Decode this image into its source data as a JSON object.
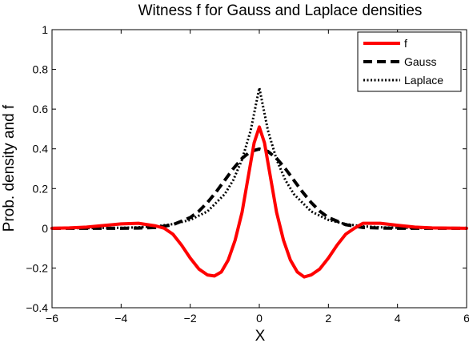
{
  "chart_data": {
    "type": "line",
    "title": "Witness f for Gauss and Laplace densities",
    "xlabel": "X",
    "ylabel": "Prob. density and f",
    "xlim": [
      -6,
      6
    ],
    "ylim": [
      -0.4,
      1
    ],
    "xticks": [
      -6,
      -4,
      -2,
      0,
      2,
      4,
      6
    ],
    "yticks": [
      -0.4,
      -0.2,
      0,
      0.2,
      0.4,
      0.6,
      0.8,
      1
    ],
    "xtick_labels": [
      "−6",
      "−4",
      "−2",
      "0",
      "2",
      "4",
      "6"
    ],
    "ytick_labels": [
      "−0.4",
      "−0.2",
      "0",
      "0.2",
      "0.4",
      "0.6",
      "0.8",
      "1"
    ],
    "grid": false,
    "legend": "top-right",
    "series": [
      {
        "name": "f",
        "color": "#ff0000",
        "style": "solid",
        "x": [
          -6,
          -5.5,
          -5,
          -4.5,
          -4,
          -3.5,
          -3,
          -2.75,
          -2.5,
          -2.25,
          -2,
          -1.75,
          -1.5,
          -1.3,
          -1.1,
          -0.9,
          -0.7,
          -0.5,
          -0.3,
          -0.15,
          0,
          0.15,
          0.3,
          0.5,
          0.7,
          0.9,
          1.1,
          1.3,
          1.5,
          1.75,
          2,
          2.25,
          2.5,
          2.75,
          3,
          3.5,
          4,
          4.5,
          5,
          5.5,
          6
        ],
        "y": [
          0,
          0.002,
          0.006,
          0.014,
          0.022,
          0.025,
          0.012,
          0,
          -0.03,
          -0.085,
          -0.15,
          -0.205,
          -0.235,
          -0.24,
          -0.22,
          -0.16,
          -0.06,
          0.08,
          0.28,
          0.43,
          0.51,
          0.43,
          0.28,
          0.08,
          -0.06,
          -0.16,
          -0.22,
          -0.245,
          -0.235,
          -0.205,
          -0.15,
          -0.085,
          -0.03,
          0,
          0.025,
          0.025,
          0.015,
          0.006,
          0.002,
          0.001,
          0
        ]
      },
      {
        "name": "Gauss",
        "color": "#000000",
        "style": "dashed",
        "x": [
          -6,
          -5,
          -4,
          -3.5,
          -3,
          -2.5,
          -2,
          -1.75,
          -1.5,
          -1.25,
          -1,
          -0.75,
          -0.5,
          -0.25,
          0,
          0.25,
          0.5,
          0.75,
          1,
          1.25,
          1.5,
          1.75,
          2,
          2.5,
          3,
          3.5,
          4,
          5,
          6
        ],
        "y": [
          0,
          0,
          0,
          0.001,
          0.004,
          0.018,
          0.054,
          0.086,
          0.13,
          0.183,
          0.242,
          0.301,
          0.352,
          0.387,
          0.399,
          0.387,
          0.352,
          0.301,
          0.242,
          0.183,
          0.13,
          0.086,
          0.054,
          0.018,
          0.004,
          0.001,
          0,
          0,
          0
        ]
      },
      {
        "name": "Laplace",
        "color": "#000000",
        "style": "dotted",
        "x": [
          -6,
          -5,
          -4,
          -3.5,
          -3,
          -2.5,
          -2,
          -1.5,
          -1,
          -0.75,
          -0.5,
          -0.25,
          0,
          0.25,
          0.5,
          0.75,
          1,
          1.5,
          2,
          2.5,
          3,
          3.5,
          4,
          5,
          6
        ],
        "y": [
          0.0002,
          0.0006,
          0.0025,
          0.005,
          0.01,
          0.021,
          0.042,
          0.085,
          0.172,
          0.244,
          0.346,
          0.492,
          0.707,
          0.492,
          0.346,
          0.244,
          0.172,
          0.085,
          0.042,
          0.021,
          0.01,
          0.005,
          0.0025,
          0.0006,
          0.0002
        ]
      }
    ]
  }
}
